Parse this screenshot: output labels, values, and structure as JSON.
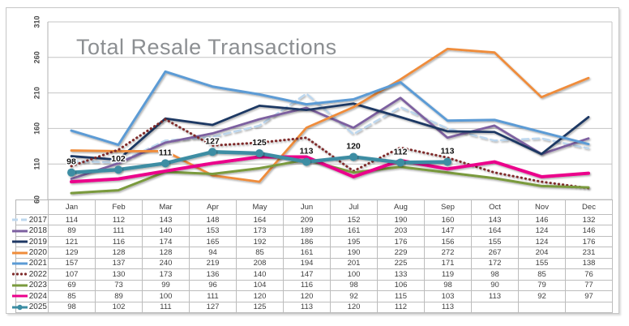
{
  "window": {
    "background": "#ffffff",
    "frame_border_color": "#c6c6c6"
  },
  "chart_data": {
    "type": "line",
    "title": "Total Resale Transactions",
    "title_color": "#8c8f92",
    "grid_color": "#c4c4c4",
    "axis_color": "#b0b0b0",
    "legend_position": "table-left",
    "grid": true,
    "categories": [
      "Jan",
      "Feb",
      "Mar",
      "Apr",
      "May",
      "Jun",
      "Jul",
      "Aug",
      "Sep",
      "Oct",
      "Nov",
      "Dec"
    ],
    "y_axis": {
      "min": 60,
      "max": 310,
      "step": 50,
      "tick_labels": [
        "310",
        "260",
        "210",
        "160",
        "110",
        "60"
      ],
      "tick_values": [
        310,
        260,
        210,
        160,
        110,
        60
      ]
    },
    "series": [
      {
        "name": "2017",
        "color": "#BDD7EE",
        "style": "dashed",
        "width": 2.5,
        "values": [
          114,
          112,
          143,
          148,
          164,
          209,
          152,
          190,
          160,
          143,
          146,
          132
        ]
      },
      {
        "name": "2018",
        "color": "#7D60A0",
        "style": "solid",
        "width": 2.8,
        "values": [
          89,
          111,
          140,
          153,
          173,
          189,
          161,
          203,
          147,
          164,
          124,
          146
        ]
      },
      {
        "name": "2019",
        "color": "#1F3864",
        "style": "solid",
        "width": 2.8,
        "values": [
          121,
          116,
          174,
          165,
          192,
          186,
          195,
          176,
          156,
          155,
          124,
          176
        ]
      },
      {
        "name": "2020",
        "color": "#EF8C3B",
        "style": "solid",
        "width": 2.8,
        "values": [
          129,
          128,
          128,
          94,
          85,
          161,
          190,
          229,
          272,
          267,
          204,
          231
        ]
      },
      {
        "name": "2021",
        "color": "#5B9BD5",
        "style": "solid",
        "width": 3,
        "values": [
          157,
          137,
          240,
          219,
          208,
          194,
          201,
          225,
          171,
          172,
          155,
          138
        ]
      },
      {
        "name": "2022",
        "color": "#7F2B2B",
        "style": "dotted",
        "width": 3,
        "values": [
          107,
          130,
          173,
          136,
          140,
          147,
          100,
          133,
          119,
          98,
          85,
          76
        ]
      },
      {
        "name": "2023",
        "color": "#7A9A3D",
        "style": "solid",
        "width": 3,
        "values": [
          69,
          73,
          99,
          96,
          104,
          116,
          98,
          106,
          98,
          90,
          79,
          77
        ]
      },
      {
        "name": "2024",
        "color": "#EB008B",
        "style": "solid",
        "width": 4,
        "values": [
          85,
          89,
          100,
          111,
          120,
          120,
          92,
          115,
          103,
          113,
          92,
          97
        ]
      },
      {
        "name": "2025",
        "color": "#3C8DA3",
        "style": "solid-markers",
        "width": 4.5,
        "marker_radius": 5,
        "show_point_labels": true,
        "values": [
          98,
          102,
          111,
          127,
          125,
          113,
          120,
          112,
          113,
          null,
          null,
          null
        ]
      }
    ],
    "point_labels_shown": [
      "98",
      "102",
      "111",
      "127",
      "125",
      "113",
      "120",
      "112",
      "113"
    ]
  },
  "table": {
    "corner_label": "",
    "empty_cell": ""
  }
}
